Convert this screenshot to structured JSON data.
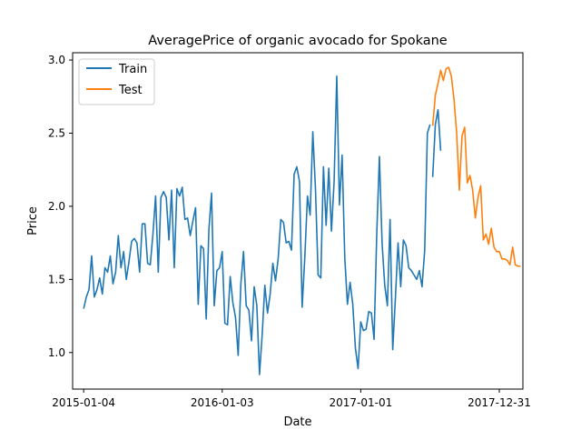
{
  "chart_data": {
    "type": "line",
    "title": "AveragePrice of organic avocado for Spokane",
    "xlabel": "Date",
    "ylabel": "Price",
    "x_ticks": [
      "2015-01-04",
      "2016-01-03",
      "2017-01-01",
      "2017-12-31"
    ],
    "y_ticks": [
      "1.0",
      "1.5",
      "2.0",
      "2.5",
      "3.0"
    ],
    "ylim": [
      0.75,
      3.05
    ],
    "xlim": [
      "2014-12-06",
      "2018-03-03"
    ],
    "grid": false,
    "legend_position": "top-left",
    "series": [
      {
        "name": "Train",
        "color": "#1f77b4",
        "x": [
          "2015-01-04",
          "2015-01-11",
          "2015-01-18",
          "2015-01-25",
          "2015-02-01",
          "2015-02-08",
          "2015-02-15",
          "2015-02-22",
          "2015-03-01",
          "2015-03-08",
          "2015-03-15",
          "2015-03-22",
          "2015-03-29",
          "2015-04-05",
          "2015-04-12",
          "2015-04-19",
          "2015-04-26",
          "2015-05-03",
          "2015-05-10",
          "2015-05-17",
          "2015-05-24",
          "2015-05-31",
          "2015-06-07",
          "2015-06-14",
          "2015-06-21",
          "2015-06-28",
          "2015-07-05",
          "2015-07-12",
          "2015-07-19",
          "2015-07-26",
          "2015-08-02",
          "2015-08-09",
          "2015-08-16",
          "2015-08-23",
          "2015-08-30",
          "2015-09-06",
          "2015-09-13",
          "2015-09-20",
          "2015-09-27",
          "2015-10-04",
          "2015-10-11",
          "2015-10-18",
          "2015-10-25",
          "2015-11-01",
          "2015-11-08",
          "2015-11-15",
          "2015-11-22",
          "2015-11-29",
          "2015-12-06",
          "2015-12-13",
          "2015-12-20",
          "2015-12-27",
          "2016-01-03",
          "2016-01-10",
          "2016-01-17",
          "2016-01-24",
          "2016-01-31",
          "2016-02-07",
          "2016-02-14",
          "2016-02-21",
          "2016-02-28",
          "2016-03-06",
          "2016-03-13",
          "2016-03-20",
          "2016-03-27",
          "2016-04-03",
          "2016-04-10",
          "2016-04-17",
          "2016-04-24",
          "2016-05-01",
          "2016-05-08",
          "2016-05-15",
          "2016-05-22",
          "2016-05-29",
          "2016-06-05",
          "2016-06-12",
          "2016-06-19",
          "2016-06-26",
          "2016-07-03",
          "2016-07-10",
          "2016-07-17",
          "2016-07-24",
          "2016-07-31",
          "2016-08-07",
          "2016-08-14",
          "2016-08-21",
          "2016-08-28",
          "2016-09-04",
          "2016-09-11",
          "2016-09-18",
          "2016-09-25",
          "2016-10-02",
          "2016-10-09",
          "2016-10-16",
          "2016-10-23",
          "2016-10-30",
          "2016-11-06",
          "2016-11-13",
          "2016-11-20",
          "2016-11-27",
          "2016-12-04",
          "2016-12-11",
          "2016-12-18",
          "2016-12-25",
          "2017-01-01",
          "2017-01-08",
          "2017-01-15",
          "2017-01-22",
          "2017-01-29",
          "2017-02-05",
          "2017-02-12",
          "2017-02-19",
          "2017-02-26",
          "2017-03-05",
          "2017-03-12",
          "2017-03-19",
          "2017-03-26",
          "2017-04-02",
          "2017-04-09",
          "2017-04-16",
          "2017-04-23",
          "2017-04-30",
          "2017-05-07",
          "2017-05-14",
          "2017-05-21",
          "2017-05-28",
          "2017-06-04",
          "2017-06-11",
          "2017-06-18",
          "2017-06-25",
          "2017-07-02"
        ],
        "y": [
          1.3,
          1.38,
          1.43,
          1.66,
          1.38,
          1.43,
          1.51,
          1.4,
          1.58,
          1.55,
          1.66,
          1.47,
          1.55,
          1.8,
          1.58,
          1.69,
          1.5,
          1.62,
          1.76,
          1.78,
          1.75,
          1.55,
          1.88,
          1.88,
          1.61,
          1.6,
          1.81,
          2.07,
          1.55,
          2.06,
          2.1,
          2.06,
          1.77,
          2.11,
          1.58,
          2.12,
          2.07,
          2.13,
          1.91,
          1.92,
          1.8,
          1.9,
          1.99,
          1.33,
          1.73,
          1.71,
          1.23,
          1.84,
          2.09,
          1.32,
          1.56,
          1.58,
          1.69,
          1.2,
          1.19,
          1.52,
          1.34,
          1.24,
          0.98,
          1.47,
          1.69,
          1.32,
          1.29,
          1.08,
          1.45,
          1.32,
          0.85,
          1.12,
          1.46,
          1.27,
          1.4,
          1.61,
          1.49,
          1.64,
          1.91,
          1.89,
          1.75,
          1.76,
          1.7,
          2.22,
          2.27,
          2.17,
          1.31,
          1.65,
          2.07,
          1.94,
          2.51,
          2.12,
          1.53,
          1.51,
          2.27,
          1.87,
          2.26,
          1.83,
          2.17,
          2.89,
          2.01,
          2.35,
          1.65,
          1.33,
          1.48,
          1.33,
          1.03,
          0.89,
          1.21,
          1.15,
          1.16,
          1.28,
          1.27,
          1.09,
          1.81,
          2.34,
          1.75,
          1.46,
          1.32,
          1.91,
          1.02,
          1.37,
          1.75,
          1.45,
          1.77,
          1.73,
          1.58,
          1.56,
          1.53,
          1.5,
          1.56,
          1.45,
          1.7,
          2.5,
          2.56
        ]
      },
      {
        "name": "Test",
        "color": "#ff7f0e",
        "x": [
          "2017-07-09",
          "2017-07-16",
          "2017-07-23",
          "2017-07-30",
          "2017-08-06",
          "2017-08-13",
          "2017-08-20",
          "2017-08-27",
          "2017-09-03",
          "2017-09-10",
          "2017-09-17",
          "2017-09-24",
          "2017-10-01",
          "2017-10-08",
          "2017-10-15",
          "2017-10-22",
          "2017-10-29",
          "2017-11-05",
          "2017-11-12",
          "2017-11-19",
          "2017-11-26",
          "2017-12-03",
          "2017-12-10",
          "2017-12-17",
          "2017-12-24",
          "2017-12-31",
          "2018-01-07",
          "2018-01-14",
          "2018-01-21",
          "2018-01-28",
          "2018-02-04",
          "2018-02-11",
          "2018-02-18",
          "2018-02-25"
        ],
        "y": [
          2.55,
          2.76,
          2.84,
          2.93,
          2.86,
          2.94,
          2.95,
          2.89,
          2.73,
          2.5,
          2.11,
          2.48,
          2.54,
          2.16,
          2.21,
          2.11,
          1.92,
          2.06,
          2.14,
          1.77,
          1.81,
          1.74,
          1.85,
          1.72,
          1.69,
          1.69,
          1.64,
          1.64,
          1.63,
          1.6,
          1.72,
          1.6,
          1.59,
          1.59
        ]
      },
      {
        "name": "",
        "color": "#1f77b4",
        "x": [
          "2017-07-09",
          "2017-07-16",
          "2017-07-23",
          "2017-07-30"
        ],
        "y": [
          2.2,
          2.56,
          2.66,
          2.38
        ]
      }
    ]
  }
}
